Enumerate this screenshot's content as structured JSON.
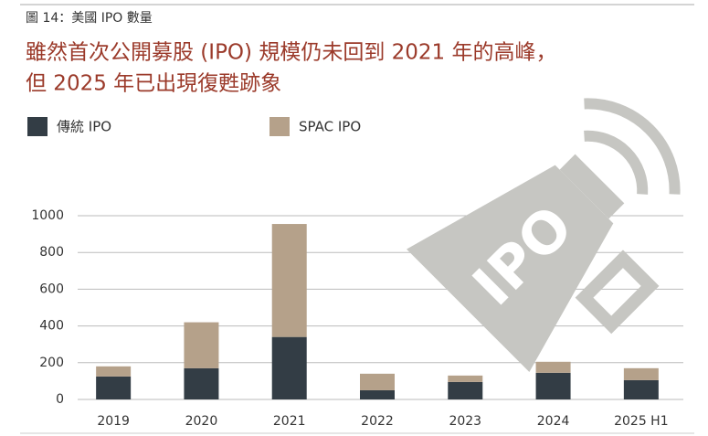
{
  "chart_data": {
    "type": "stacked_bar",
    "caption": "圖 14：美國 IPO 數量",
    "title": [
      "雖然首次公開募股 (IPO) 規模仍未回到 2021 年的高峰，",
      "但 2025 年已出現復甦跡象"
    ],
    "icon_label": "IPO",
    "categories": [
      "2019",
      "2020",
      "2021",
      "2022",
      "2023",
      "2024",
      "2025 H1"
    ],
    "series": [
      {
        "name": "傳統 IPO",
        "color": "#333d45",
        "values": [
          125,
          170,
          340,
          50,
          95,
          145,
          105
        ]
      },
      {
        "name": "SPAC IPO",
        "color": "#b5a18a",
        "values": [
          55,
          250,
          615,
          90,
          35,
          60,
          65
        ]
      }
    ],
    "ylim": [
      0,
      1000
    ],
    "yticks": [
      0,
      200,
      400,
      600,
      800,
      1000
    ],
    "grid": true
  }
}
